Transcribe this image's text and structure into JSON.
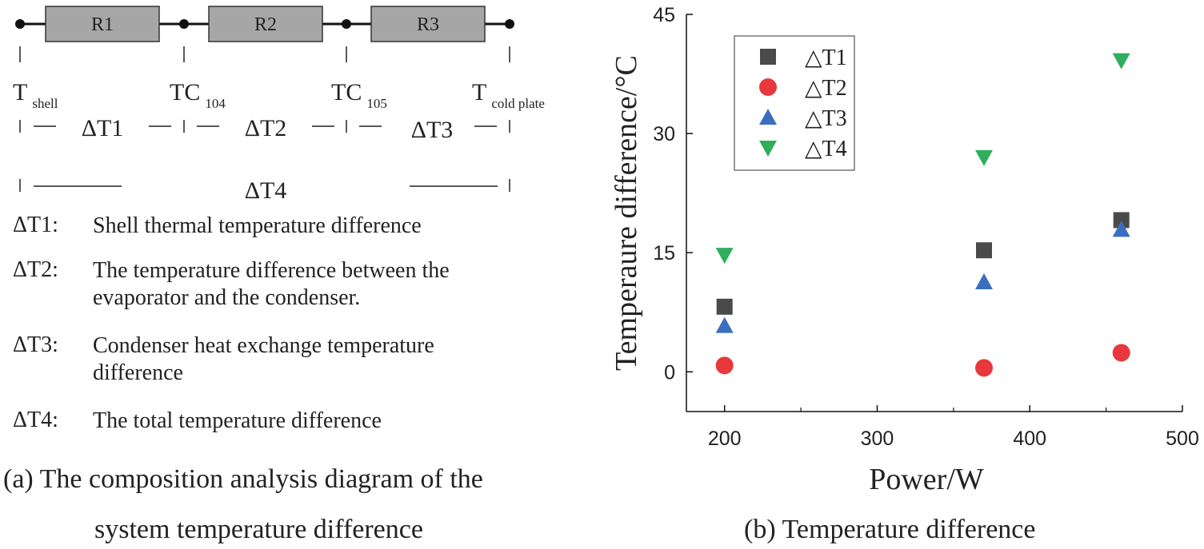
{
  "diagram": {
    "resistors": [
      "R1",
      "R2",
      "R3"
    ],
    "temp_points": [
      {
        "main": "T",
        "sub": "shell"
      },
      {
        "main": "TC",
        "sub": "104"
      },
      {
        "main": "TC",
        "sub": "105"
      },
      {
        "main": "T",
        "sub": "cold plate"
      }
    ],
    "differences": [
      "ΔT1",
      "ΔT2",
      "ΔT3"
    ],
    "total_difference": "ΔT4",
    "definitions": [
      {
        "key": "ΔT1:",
        "text": "Shell thermal temperature difference"
      },
      {
        "key": "ΔT2:",
        "text": "The temperature difference between the evaporator and the condenser."
      },
      {
        "key": "ΔT3:",
        "text": "Condenser heat exchange temperature difference"
      },
      {
        "key": "ΔT4:",
        "text": "The total temperature difference"
      }
    ],
    "caption_line1": "(a) The composition analysis diagram of the",
    "caption_line2": "system temperature difference"
  },
  "chart_data": {
    "type": "scatter",
    "xlabel": "Power/W",
    "ylabel": "Temperaure difference/°C",
    "xlim": [
      175,
      500
    ],
    "ylim": [
      -5,
      45
    ],
    "xticks": [
      200,
      300,
      400,
      500
    ],
    "yticks": [
      0,
      15,
      30,
      45
    ],
    "grid": false,
    "legend_position": "top-left",
    "x": [
      200,
      370,
      460
    ],
    "series": [
      {
        "name": "△T1",
        "marker": "square",
        "color": "#4a4a4a",
        "values": [
          8.2,
          15.3,
          19.1
        ]
      },
      {
        "name": "△T2",
        "marker": "circle",
        "color": "#e8383d",
        "values": [
          0.8,
          0.5,
          2.4
        ]
      },
      {
        "name": "△T3",
        "marker": "triangle-up",
        "color": "#3a6fbf",
        "values": [
          5.8,
          11.3,
          17.9
        ]
      },
      {
        "name": "△T4",
        "marker": "triangle-down",
        "color": "#2fae5c",
        "values": [
          14.7,
          27.0,
          39.2
        ]
      }
    ],
    "caption": "(b) Temperature difference"
  }
}
